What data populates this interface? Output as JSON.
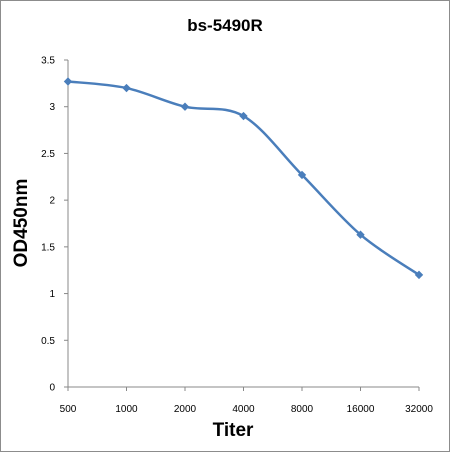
{
  "chart_data": {
    "type": "line",
    "title": "bs-5490R",
    "xlabel": "Titer",
    "ylabel": "OD450nm",
    "categories": [
      "500",
      "1000",
      "2000",
      "4000",
      "8000",
      "16000",
      "32000"
    ],
    "series": [
      {
        "values": [
          3.27,
          3.2,
          3.0,
          2.9,
          2.27,
          1.63,
          1.2
        ],
        "color": "#4a7ebb",
        "marker": "diamond"
      }
    ],
    "yticks": [
      "0",
      "0.5",
      "1",
      "1.5",
      "2",
      "2.5",
      "3",
      "3.5"
    ],
    "ylim": [
      0,
      3.5
    ],
    "grid": false,
    "legend": "none",
    "smooth": true
  }
}
